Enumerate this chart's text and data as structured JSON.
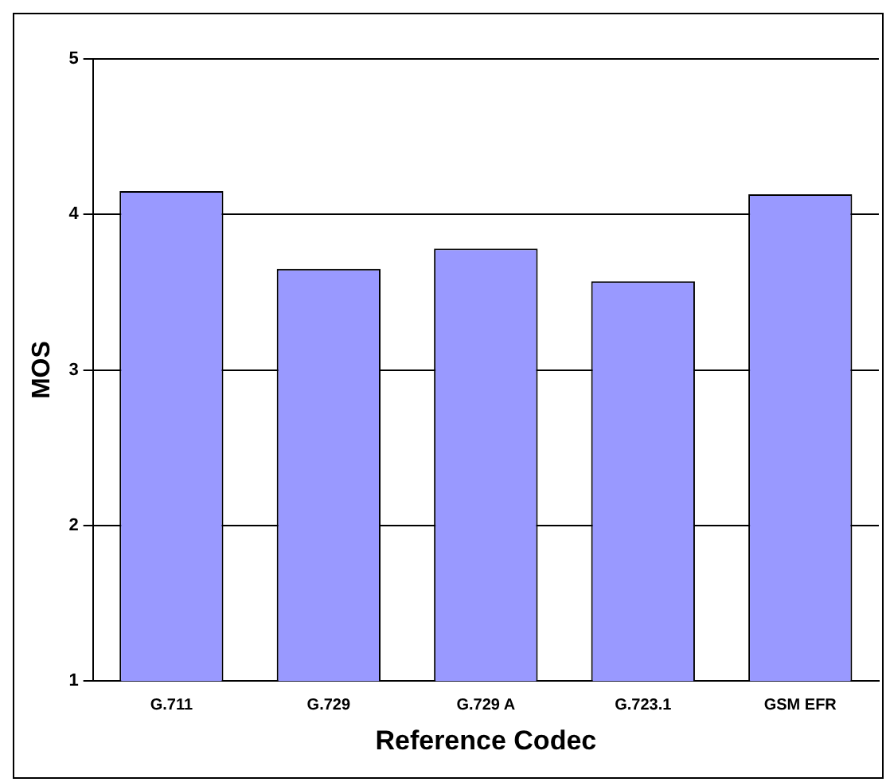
{
  "chart_data": {
    "type": "bar",
    "xlabel": "Reference Codec",
    "ylabel": "MOS",
    "categories": [
      "G.711",
      "G.729",
      "G.729 A",
      "G.723.1",
      "GSM EFR"
    ],
    "values": [
      4.15,
      3.65,
      3.78,
      3.57,
      4.13
    ],
    "color": "#9999ff",
    "ylim": [
      1,
      5
    ],
    "yticks": [
      1,
      2,
      3,
      4,
      5
    ],
    "grid": "y",
    "legend": false
  }
}
